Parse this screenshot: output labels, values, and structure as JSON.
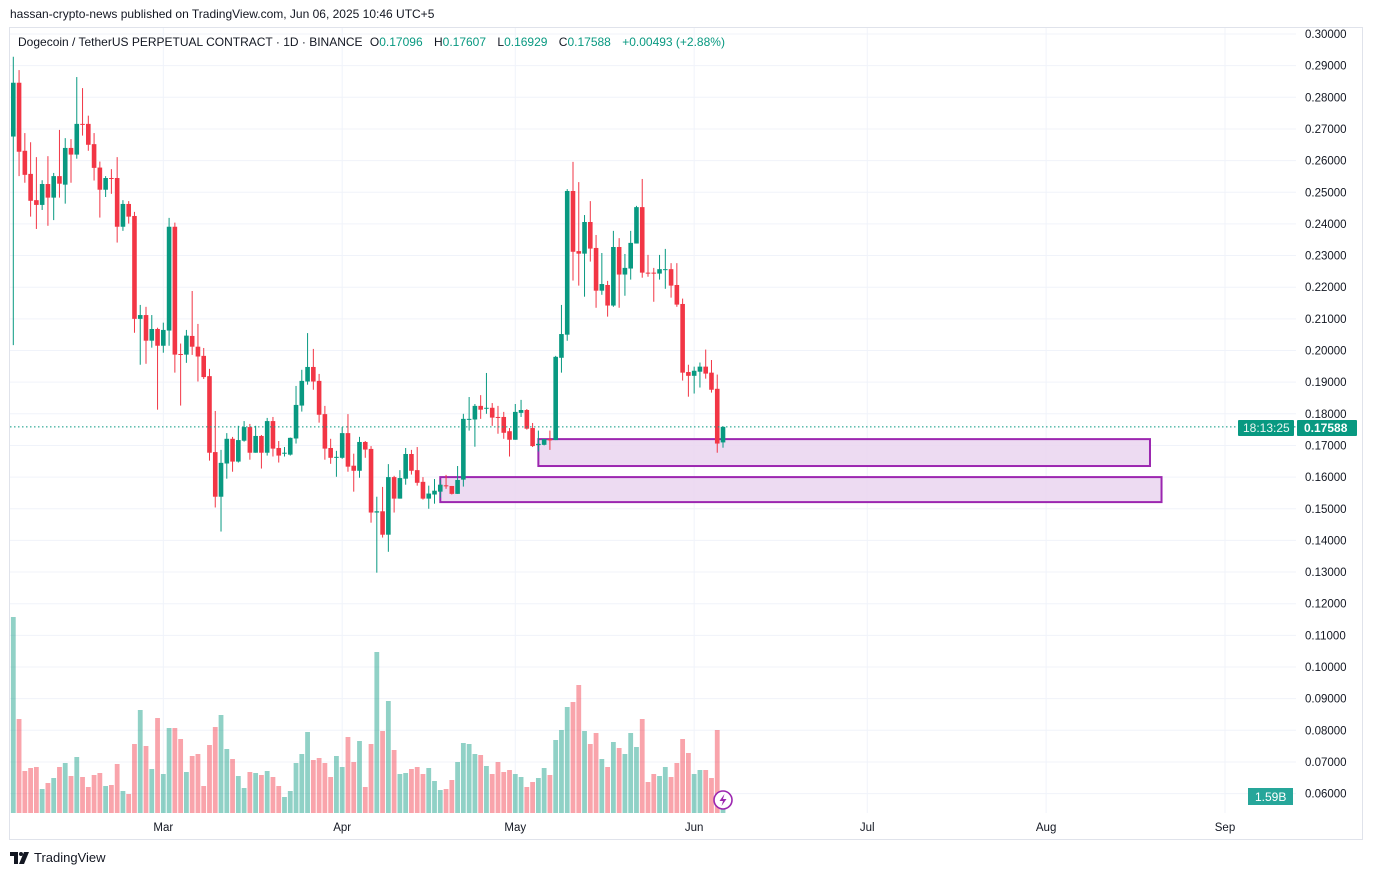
{
  "header": {
    "published": "hassan-crypto-news published on TradingView.com, Jun 06, 2025 10:46 UTC+5"
  },
  "legend": {
    "symbol": "Dogecoin / TetherUS PERPETUAL CONTRACT · 1D · BINANCE",
    "o_label": "O",
    "o": "0.17096",
    "h_label": "H",
    "h": "0.17607",
    "l_label": "L",
    "l": "0.16929",
    "c_label": "C",
    "c": "0.17588",
    "change": "+0.00493 (+2.88%)"
  },
  "price_label": {
    "price": "0.17588",
    "countdown": "18:13:25"
  },
  "volume_label": "1.59B",
  "footer": {
    "brand": "TradingView"
  },
  "colors": {
    "up": "#089981",
    "down": "#f23645",
    "zone_border": "#9c27b0",
    "zone_fill": "#ead5f0"
  },
  "chart_data": {
    "type": "candlestick",
    "interval": "1D",
    "ylim": [
      0.06,
      0.3
    ],
    "y_scale": "linear",
    "grid": true,
    "y_ticks": [
      "0.30000",
      "0.29000",
      "0.28000",
      "0.27000",
      "0.26000",
      "0.25000",
      "0.24000",
      "0.23000",
      "0.22000",
      "0.21000",
      "0.20000",
      "0.19000",
      "0.18000",
      "0.17000",
      "0.16000",
      "0.15000",
      "0.14000",
      "0.13000",
      "0.12000",
      "0.11000",
      "0.10000",
      "0.09000",
      "0.08000",
      "0.07000",
      "0.06000"
    ],
    "x_ticks": [
      {
        "label": "Mar",
        "date": "2025-03-01"
      },
      {
        "label": "Apr",
        "date": "2025-04-01"
      },
      {
        "label": "May",
        "date": "2025-05-01"
      },
      {
        "label": "Jun",
        "date": "2025-06-01"
      },
      {
        "label": "Jul",
        "date": "2025-07-01"
      },
      {
        "label": "Aug",
        "date": "2025-08-01"
      },
      {
        "label": "Sep",
        "date": "2025-09-01"
      }
    ],
    "columns": [
      "date",
      "open",
      "high",
      "low",
      "close",
      "volume_B"
    ],
    "candles": [
      [
        "2025-02-03",
        0.2676,
        0.2928,
        0.2017,
        0.2846,
        19.6
      ],
      [
        "2025-02-04",
        0.2846,
        0.2886,
        0.2551,
        0.2628,
        9.4
      ],
      [
        "2025-02-05",
        0.2631,
        0.2687,
        0.253,
        0.2555,
        4.2
      ],
      [
        "2025-02-06",
        0.2558,
        0.2658,
        0.2423,
        0.2473,
        4.5
      ],
      [
        "2025-02-07",
        0.2475,
        0.2611,
        0.2384,
        0.246,
        4.6
      ],
      [
        "2025-02-08",
        0.246,
        0.2538,
        0.2444,
        0.2526,
        2.4
      ],
      [
        "2025-02-09",
        0.2526,
        0.2614,
        0.2394,
        0.2483,
        3.0
      ],
      [
        "2025-02-10",
        0.2483,
        0.2561,
        0.2412,
        0.2551,
        3.5
      ],
      [
        "2025-02-11",
        0.2551,
        0.2697,
        0.2483,
        0.2527,
        4.6
      ],
      [
        "2025-02-12",
        0.2524,
        0.2671,
        0.2464,
        0.264,
        5.0
      ],
      [
        "2025-02-13",
        0.264,
        0.2668,
        0.253,
        0.2619,
        3.7
      ],
      [
        "2025-02-14",
        0.2619,
        0.2864,
        0.2606,
        0.2716,
        5.6
      ],
      [
        "2025-02-15",
        0.2716,
        0.2829,
        0.2679,
        0.2714,
        3.6
      ],
      [
        "2025-02-16",
        0.2716,
        0.2742,
        0.2631,
        0.265,
        2.6
      ],
      [
        "2025-02-17",
        0.2652,
        0.2687,
        0.2537,
        0.2577,
        3.8
      ],
      [
        "2025-02-18",
        0.2578,
        0.2597,
        0.242,
        0.2508,
        4.0
      ],
      [
        "2025-02-19",
        0.2508,
        0.2551,
        0.2485,
        0.2545,
        2.7
      ],
      [
        "2025-02-20",
        0.2545,
        0.2573,
        0.2495,
        0.2543,
        2.8
      ],
      [
        "2025-02-21",
        0.2545,
        0.2611,
        0.2341,
        0.2391,
        4.9
      ],
      [
        "2025-02-22",
        0.2391,
        0.2475,
        0.2378,
        0.2463,
        2.2
      ],
      [
        "2025-02-23",
        0.2463,
        0.2472,
        0.2401,
        0.2423,
        1.9
      ],
      [
        "2025-02-24",
        0.2425,
        0.2438,
        0.2056,
        0.21,
        6.9
      ],
      [
        "2025-02-25",
        0.21,
        0.2144,
        0.1955,
        0.2112,
        10.3
      ],
      [
        "2025-02-26",
        0.2112,
        0.2138,
        0.1958,
        0.2031,
        6.7
      ],
      [
        "2025-02-27",
        0.2031,
        0.2112,
        0.2009,
        0.2068,
        4.4
      ],
      [
        "2025-02-28",
        0.2068,
        0.2072,
        0.1813,
        0.2015,
        9.5
      ],
      [
        "2025-03-01",
        0.2015,
        0.2088,
        0.1993,
        0.2065,
        3.9
      ],
      [
        "2025-03-02",
        0.2063,
        0.2419,
        0.2015,
        0.2391,
        8.5
      ],
      [
        "2025-03-03",
        0.2391,
        0.2404,
        0.193,
        0.1987,
        8.5
      ],
      [
        "2025-03-04",
        0.1989,
        0.2022,
        0.1826,
        0.1987,
        7.4
      ],
      [
        "2025-03-05",
        0.1987,
        0.2065,
        0.1961,
        0.2047,
        4.1
      ],
      [
        "2025-03-06",
        0.2046,
        0.2188,
        0.1986,
        0.2012,
        5.7
      ],
      [
        "2025-03-07",
        0.2012,
        0.2084,
        0.1902,
        0.1981,
        5.9
      ],
      [
        "2025-03-08",
        0.1983,
        0.2008,
        0.191,
        0.1916,
        2.7
      ],
      [
        "2025-03-09",
        0.1919,
        0.1942,
        0.1652,
        0.1677,
        6.8
      ],
      [
        "2025-03-10",
        0.1679,
        0.1809,
        0.1504,
        0.1538,
        8.6
      ],
      [
        "2025-03-11",
        0.1538,
        0.1686,
        0.1428,
        0.1645,
        9.8
      ],
      [
        "2025-03-12",
        0.1643,
        0.1739,
        0.1595,
        0.1721,
        6.4
      ],
      [
        "2025-03-13",
        0.1721,
        0.1727,
        0.1617,
        0.1649,
        5.4
      ],
      [
        "2025-03-14",
        0.1649,
        0.1762,
        0.1646,
        0.1717,
        3.7
      ],
      [
        "2025-03-15",
        0.1715,
        0.1777,
        0.1712,
        0.1758,
        2.5
      ],
      [
        "2025-03-16",
        0.1758,
        0.1768,
        0.1655,
        0.1677,
        4.1
      ],
      [
        "2025-03-17",
        0.1677,
        0.1762,
        0.1677,
        0.173,
        4.0
      ],
      [
        "2025-03-18",
        0.173,
        0.1733,
        0.1627,
        0.1677,
        3.8
      ],
      [
        "2025-03-19",
        0.1677,
        0.1787,
        0.1668,
        0.1777,
        4.2
      ],
      [
        "2025-03-20",
        0.1777,
        0.179,
        0.1665,
        0.169,
        3.6
      ],
      [
        "2025-03-21",
        0.1692,
        0.1714,
        0.1646,
        0.1668,
        2.7
      ],
      [
        "2025-03-22",
        0.1674,
        0.1695,
        0.1665,
        0.1677,
        1.6
      ],
      [
        "2025-03-23",
        0.1671,
        0.1725,
        0.1668,
        0.1724,
        2.2
      ],
      [
        "2025-03-24",
        0.1722,
        0.1888,
        0.1706,
        0.1828,
        5.0
      ],
      [
        "2025-03-25",
        0.1826,
        0.1939,
        0.1807,
        0.1904,
        5.9
      ],
      [
        "2025-03-26",
        0.1902,
        0.2055,
        0.1892,
        0.1948,
        8.1
      ],
      [
        "2025-03-27",
        0.1948,
        0.2005,
        0.1876,
        0.1902,
        5.3
      ],
      [
        "2025-03-28",
        0.1904,
        0.1926,
        0.1772,
        0.1797,
        5.5
      ],
      [
        "2025-03-29",
        0.1799,
        0.1825,
        0.1655,
        0.169,
        5.0
      ],
      [
        "2025-03-30",
        0.1692,
        0.1721,
        0.1642,
        0.1661,
        3.6
      ],
      [
        "2025-03-31",
        0.1661,
        0.1683,
        0.1601,
        0.1664,
        5.7
      ],
      [
        "2025-04-01",
        0.1661,
        0.1758,
        0.1658,
        0.1739,
        4.6
      ],
      [
        "2025-04-02",
        0.1739,
        0.1799,
        0.1617,
        0.1633,
        7.6
      ],
      [
        "2025-04-03",
        0.1636,
        0.1674,
        0.1554,
        0.162,
        5.1
      ],
      [
        "2025-04-04",
        0.162,
        0.1727,
        0.1598,
        0.1711,
        7.2
      ],
      [
        "2025-04-05",
        0.1711,
        0.1714,
        0.1661,
        0.1687,
        2.6
      ],
      [
        "2025-04-06",
        0.1689,
        0.1698,
        0.1456,
        0.1488,
        6.9
      ],
      [
        "2025-04-07",
        0.1488,
        0.1538,
        0.1298,
        0.1492,
        16.1
      ],
      [
        "2025-04-08",
        0.1492,
        0.1569,
        0.1409,
        0.1418,
        8.2
      ],
      [
        "2025-04-09",
        0.1418,
        0.1641,
        0.1364,
        0.16,
        11.2
      ],
      [
        "2025-04-10",
        0.16,
        0.1604,
        0.1488,
        0.1532,
        6.3
      ],
      [
        "2025-04-11",
        0.1532,
        0.1622,
        0.1532,
        0.1597,
        3.9
      ],
      [
        "2025-04-12",
        0.1595,
        0.1692,
        0.1576,
        0.1673,
        4.0
      ],
      [
        "2025-04-13",
        0.1673,
        0.1686,
        0.1608,
        0.162,
        4.4
      ],
      [
        "2025-04-14",
        0.1622,
        0.1695,
        0.1573,
        0.1582,
        4.6
      ],
      [
        "2025-04-15",
        0.1585,
        0.16,
        0.1529,
        0.1532,
        3.9
      ],
      [
        "2025-04-16",
        0.1532,
        0.1573,
        0.15,
        0.1548,
        4.5
      ],
      [
        "2025-04-17",
        0.1545,
        0.1594,
        0.1516,
        0.1557,
        3.2
      ],
      [
        "2025-04-18",
        0.1554,
        0.1591,
        0.1535,
        0.1576,
        2.3
      ],
      [
        "2025-04-19",
        0.1574,
        0.1607,
        0.1563,
        0.1573,
        2.4
      ],
      [
        "2025-04-20",
        0.1572,
        0.1572,
        0.1545,
        0.1547,
        3.3
      ],
      [
        "2025-04-21",
        0.1547,
        0.1635,
        0.1547,
        0.1591,
        5.1
      ],
      [
        "2025-04-22",
        0.1592,
        0.18,
        0.157,
        0.1784,
        7.0
      ],
      [
        "2025-04-23",
        0.1781,
        0.1853,
        0.1747,
        0.1784,
        6.9
      ],
      [
        "2025-04-24",
        0.1782,
        0.1831,
        0.1696,
        0.1825,
        5.9
      ],
      [
        "2025-04-25",
        0.1825,
        0.1859,
        0.1784,
        0.1813,
        5.8
      ],
      [
        "2025-04-26",
        0.1816,
        0.1929,
        0.18,
        0.1819,
        4.7
      ],
      [
        "2025-04-27",
        0.1819,
        0.1834,
        0.1762,
        0.1788,
        3.9
      ],
      [
        "2025-04-28",
        0.179,
        0.1825,
        0.1737,
        0.1788,
        5.1
      ],
      [
        "2025-04-29",
        0.179,
        0.1806,
        0.1721,
        0.174,
        4.1
      ],
      [
        "2025-04-30",
        0.1745,
        0.1755,
        0.1665,
        0.1718,
        4.3
      ],
      [
        "2025-05-01",
        0.1718,
        0.1831,
        0.1718,
        0.1806,
        3.9
      ],
      [
        "2025-05-02",
        0.1803,
        0.1844,
        0.179,
        0.1812,
        3.6
      ],
      [
        "2025-05-03",
        0.1812,
        0.1815,
        0.175,
        0.1753,
        2.6
      ],
      [
        "2025-05-04",
        0.1755,
        0.1771,
        0.1695,
        0.1698,
        3.1
      ],
      [
        "2025-05-05",
        0.1701,
        0.1747,
        0.1681,
        0.1705,
        3.5
      ],
      [
        "2025-05-06",
        0.1702,
        0.172,
        0.17,
        0.172,
        4.5
      ],
      [
        "2025-05-07",
        0.172,
        0.1747,
        0.1686,
        0.1716,
        3.8
      ],
      [
        "2025-05-08",
        0.1717,
        0.1983,
        0.1717,
        0.198,
        7.3
      ],
      [
        "2025-05-09",
        0.1977,
        0.2144,
        0.193,
        0.2052,
        8.3
      ],
      [
        "2025-05-10",
        0.205,
        0.251,
        0.2031,
        0.2504,
        10.6
      ],
      [
        "2025-05-11",
        0.2504,
        0.2596,
        0.2221,
        0.2312,
        11.1
      ],
      [
        "2025-05-12",
        0.2314,
        0.2532,
        0.2205,
        0.2306,
        12.8
      ],
      [
        "2025-05-13",
        0.2306,
        0.2428,
        0.217,
        0.2406,
        8.2
      ],
      [
        "2025-05-14",
        0.2406,
        0.2472,
        0.2281,
        0.2322,
        6.9
      ],
      [
        "2025-05-15",
        0.2324,
        0.2365,
        0.2135,
        0.2189,
        8.0
      ],
      [
        "2025-05-16",
        0.2189,
        0.2308,
        0.2176,
        0.221,
        5.4
      ],
      [
        "2025-05-17",
        0.2207,
        0.222,
        0.2107,
        0.2142,
        4.6
      ],
      [
        "2025-05-18",
        0.2142,
        0.2378,
        0.2138,
        0.2327,
        7.1
      ],
      [
        "2025-05-19",
        0.2327,
        0.2355,
        0.2135,
        0.224,
        6.5
      ],
      [
        "2025-05-20",
        0.224,
        0.2305,
        0.2173,
        0.2261,
        5.9
      ],
      [
        "2025-05-21",
        0.2259,
        0.2378,
        0.2224,
        0.234,
        8.0
      ],
      [
        "2025-05-22",
        0.2338,
        0.2457,
        0.2338,
        0.2453,
        6.6
      ],
      [
        "2025-05-23",
        0.2453,
        0.2542,
        0.223,
        0.2246,
        9.4
      ],
      [
        "2025-05-24",
        0.2246,
        0.2302,
        0.2233,
        0.2244,
        3.1
      ],
      [
        "2025-05-25",
        0.2246,
        0.2261,
        0.2154,
        0.2244,
        3.9
      ],
      [
        "2025-05-26",
        0.2243,
        0.2302,
        0.2224,
        0.2257,
        3.7
      ],
      [
        "2025-05-27",
        0.2254,
        0.2321,
        0.2195,
        0.2257,
        4.6
      ],
      [
        "2025-05-28",
        0.2257,
        0.2276,
        0.2167,
        0.2205,
        3.6
      ],
      [
        "2025-05-29",
        0.2207,
        0.2276,
        0.2138,
        0.2145,
        5.0
      ],
      [
        "2025-05-30",
        0.2147,
        0.2164,
        0.1905,
        0.193,
        7.4
      ],
      [
        "2025-05-31",
        0.1932,
        0.1955,
        0.1854,
        0.192,
        6.0
      ],
      [
        "2025-06-01",
        0.192,
        0.1949,
        0.1864,
        0.1936,
        3.9
      ],
      [
        "2025-06-02",
        0.1933,
        0.1962,
        0.1883,
        0.1949,
        4.3
      ],
      [
        "2025-06-03",
        0.1949,
        0.2003,
        0.1911,
        0.1927,
        4.3
      ],
      [
        "2025-06-04",
        0.193,
        0.197,
        0.1867,
        0.1876,
        3.5
      ],
      [
        "2025-06-05",
        0.1879,
        0.1924,
        0.1677,
        0.1706,
        8.3
      ],
      [
        "2025-06-06",
        0.17096,
        0.17607,
        0.16929,
        0.17588,
        1.59
      ]
    ],
    "zones": [
      {
        "from": "2025-05-05",
        "to": "2025-08-19",
        "top": 0.172,
        "bottom": 0.1635
      },
      {
        "from": "2025-04-18",
        "to": "2025-08-21",
        "top": 0.16,
        "bottom": 0.1521
      }
    ],
    "last_price": 0.17588
  }
}
